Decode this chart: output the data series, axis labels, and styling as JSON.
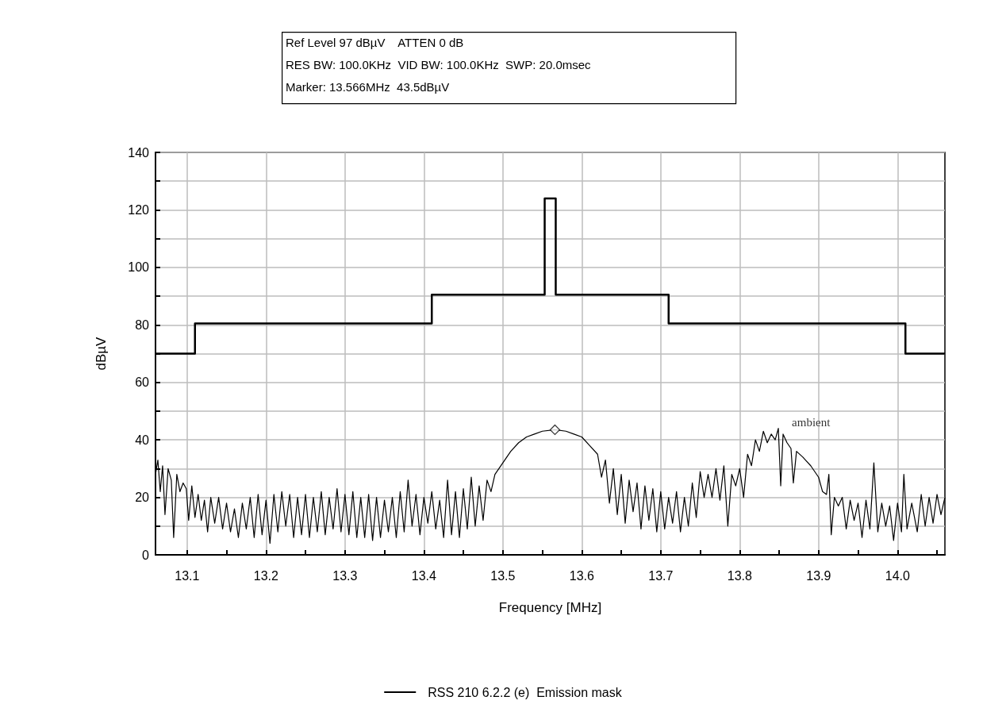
{
  "chart_data": {
    "type": "line",
    "xlabel": "Frequency [MHz]",
    "ylabel": "dBµV",
    "annotations": [
      "Ref Level 97 dBµV    ATTEN 0 dB",
      "RES BW: 100.0KHz  VID BW: 100.0KHz  SWP: 20.0msec",
      "Marker: 13.566MHz  43.5dBµV",
      {
        "text": "ambient",
        "x": 13.849,
        "y": 44
      }
    ],
    "xlim": [
      13.06,
      14.06
    ],
    "ylim": [
      0,
      140
    ],
    "xticks": [
      13.1,
      {
        "value": 13.15,
        "label": null
      },
      13.2,
      {
        "value": 13.25,
        "label": null
      },
      13.3,
      {
        "value": 13.35,
        "label": null
      },
      13.4,
      {
        "value": 13.45,
        "label": null
      },
      13.5,
      {
        "value": 13.55,
        "label": null
      },
      13.6,
      {
        "value": 13.65,
        "label": null
      },
      13.7,
      {
        "value": 13.75,
        "label": null
      },
      13.8,
      {
        "value": 13.85,
        "label": null
      },
      13.9,
      {
        "value": 13.95,
        "label": null
      },
      {
        "value": 14.0,
        "label": "14.0"
      },
      {
        "value": 14.05,
        "label": null
      }
    ],
    "yticks": [
      0,
      {
        "value": 10,
        "label": null
      },
      20,
      {
        "value": 30,
        "label": null
      },
      40,
      {
        "value": 50,
        "label": null
      },
      60,
      {
        "value": 70,
        "label": null
      },
      80,
      {
        "value": 90,
        "label": null
      },
      100,
      {
        "value": 110,
        "label": null
      },
      120,
      {
        "value": 130,
        "label": null
      },
      140
    ],
    "grid": true,
    "legend": "bottom",
    "series": [
      {
        "name": "RSS 210 6.2.2 (e)  Emission mask",
        "color": "#000000",
        "marker": "none",
        "x": [
          13.06,
          13.11,
          13.11,
          13.41,
          13.41,
          13.553,
          13.553,
          13.567,
          13.567,
          13.71,
          13.71,
          14.01,
          14.01,
          14.06
        ],
        "values": [
          70,
          70,
          80.5,
          80.5,
          90.5,
          90.5,
          124,
          124,
          90.5,
          90.5,
          80.5,
          80.5,
          70,
          70
        ]
      },
      {
        "color": "#000000",
        "marker": "none",
        "x": [
          13.06,
          13.063,
          13.066,
          13.069,
          13.072,
          13.076,
          13.08,
          13.083,
          13.087,
          13.091,
          13.095,
          13.099,
          13.102,
          13.106,
          13.11,
          13.114,
          13.118,
          13.122,
          13.126,
          13.13,
          13.135,
          13.14,
          13.145,
          13.15,
          13.155,
          13.16,
          13.165,
          13.17,
          13.175,
          13.18,
          13.185,
          13.19,
          13.195,
          13.2,
          13.205,
          13.21,
          13.215,
          13.22,
          13.225,
          13.23,
          13.235,
          13.24,
          13.245,
          13.25,
          13.255,
          13.26,
          13.265,
          13.27,
          13.275,
          13.28,
          13.285,
          13.29,
          13.295,
          13.3,
          13.305,
          13.31,
          13.315,
          13.32,
          13.325,
          13.33,
          13.335,
          13.34,
          13.345,
          13.35,
          13.355,
          13.36,
          13.365,
          13.37,
          13.375,
          13.38,
          13.385,
          13.39,
          13.395,
          13.4,
          13.405,
          13.41,
          13.415,
          13.42,
          13.425,
          13.43,
          13.435,
          13.44,
          13.445,
          13.45,
          13.455,
          13.46,
          13.465,
          13.47,
          13.475,
          13.48,
          13.485,
          13.49,
          13.5,
          13.51,
          13.52,
          13.53,
          13.54,
          13.55,
          13.566,
          13.58,
          13.59,
          13.6,
          13.61,
          13.62,
          13.625,
          13.63,
          13.635,
          13.64,
          13.645,
          13.65,
          13.655,
          13.66,
          13.665,
          13.67,
          13.675,
          13.68,
          13.685,
          13.69,
          13.695,
          13.7,
          13.705,
          13.71,
          13.715,
          13.72,
          13.725,
          13.73,
          13.735,
          13.74,
          13.745,
          13.75,
          13.755,
          13.76,
          13.765,
          13.77,
          13.775,
          13.78,
          13.785,
          13.79,
          13.795,
          13.8,
          13.805,
          13.81,
          13.815,
          13.82,
          13.825,
          13.83,
          13.835,
          13.84,
          13.845,
          13.849,
          13.852,
          13.855,
          13.86,
          13.865,
          13.868,
          13.872,
          13.88,
          13.89,
          13.9,
          13.905,
          13.91,
          13.913,
          13.916,
          13.92,
          13.925,
          13.93,
          13.935,
          13.94,
          13.945,
          13.95,
          13.955,
          13.96,
          13.965,
          13.97,
          13.975,
          13.98,
          13.985,
          13.99,
          13.995,
          14.0,
          14.005,
          14.008,
          14.012,
          14.018,
          14.025,
          14.03,
          14.035,
          14.04,
          14.045,
          14.05,
          14.055,
          14.06
        ],
        "values": [
          28,
          33,
          22,
          31,
          14,
          30,
          26,
          6,
          28,
          22,
          25,
          23,
          12,
          24,
          13,
          21,
          12,
          19,
          8,
          20,
          11,
          20,
          9,
          18,
          8,
          16,
          6,
          18,
          9,
          20,
          6,
          21,
          7,
          19,
          4,
          21,
          8,
          22,
          10,
          21,
          6,
          20,
          7,
          21,
          6,
          20,
          8,
          22,
          7,
          20,
          9,
          23,
          8,
          21,
          7,
          22,
          6,
          20,
          6,
          21,
          5,
          20,
          6,
          19,
          8,
          20,
          6,
          22,
          8,
          26,
          10,
          21,
          7,
          20,
          11,
          22,
          9,
          19,
          6,
          26,
          7,
          22,
          6,
          23,
          9,
          27,
          10,
          24,
          12,
          26,
          22,
          28,
          32,
          36,
          39,
          41,
          42,
          43,
          43.5,
          43,
          42,
          41,
          38,
          35,
          27,
          33,
          18,
          30,
          14,
          28,
          11,
          26,
          15,
          25,
          9,
          24,
          12,
          23,
          8,
          22,
          9,
          20,
          11,
          22,
          8,
          20,
          10,
          25,
          13,
          29,
          20,
          28,
          20,
          30,
          19,
          31,
          10,
          28,
          24,
          30,
          20,
          35,
          31,
          40,
          36,
          43,
          39,
          42,
          40,
          44,
          24,
          42,
          39,
          37,
          25,
          36,
          34,
          31,
          27,
          22,
          21,
          28,
          7,
          20,
          17,
          20,
          9,
          19,
          12,
          18,
          6,
          19,
          9,
          32,
          8,
          18,
          10,
          17,
          5,
          18,
          8,
          28,
          9,
          18,
          8,
          21,
          10,
          20,
          11,
          21,
          14,
          20
        ]
      },
      {
        "type": "scatter",
        "color": "#000000",
        "marker": "diamond",
        "x": [
          13.566
        ],
        "values": [
          43.5
        ]
      }
    ]
  }
}
